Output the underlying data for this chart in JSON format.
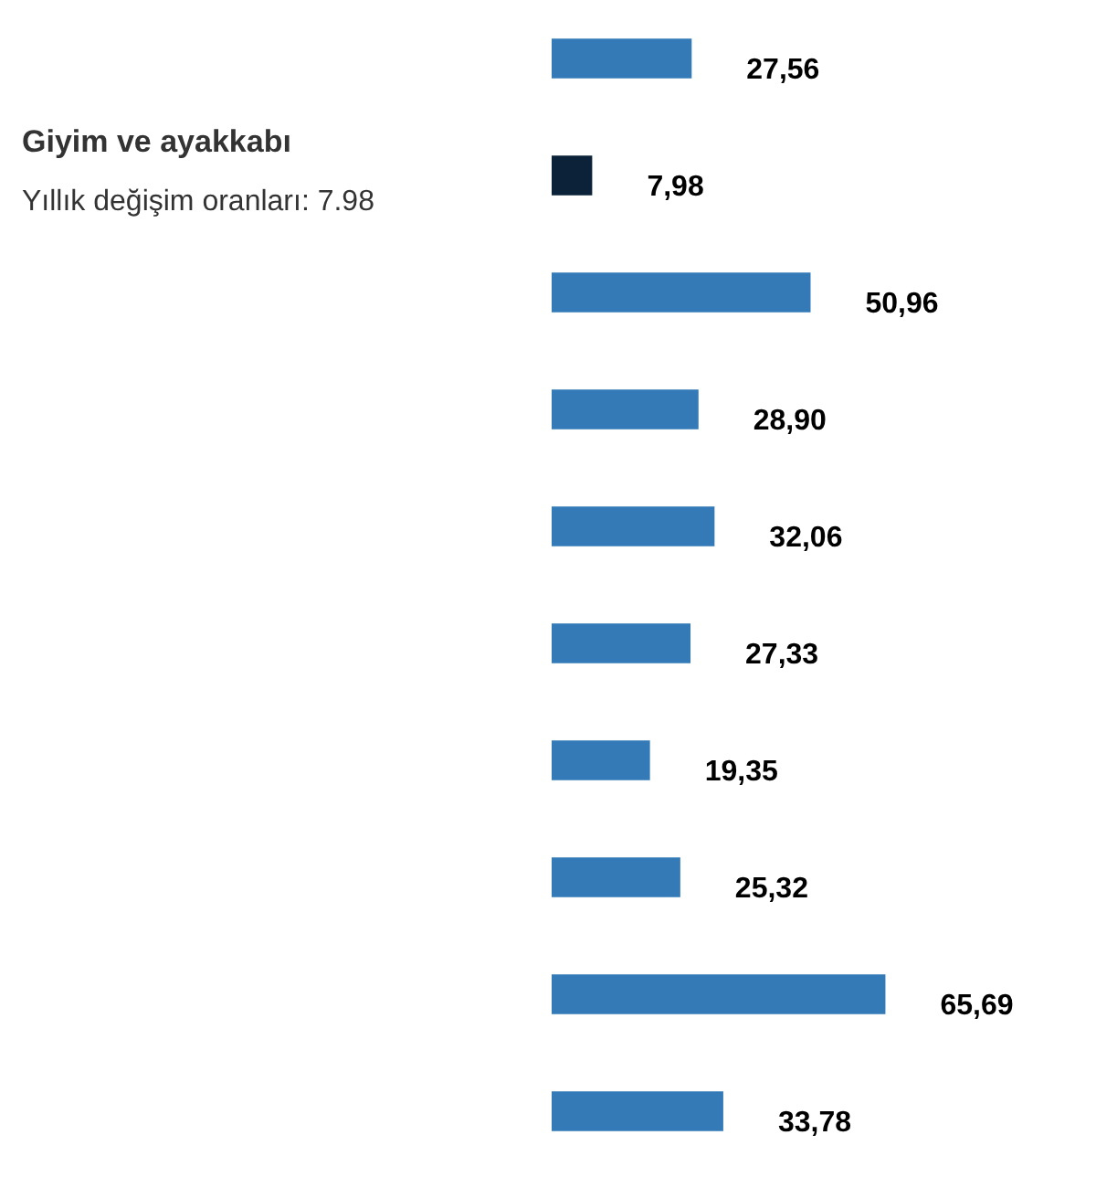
{
  "chart_data": {
    "type": "bar",
    "orientation": "horizontal",
    "categories": [
      null,
      null,
      null,
      null,
      null,
      null,
      null,
      null,
      null,
      null
    ],
    "values": [
      27.56,
      7.98,
      50.96,
      28.9,
      32.06,
      27.33,
      19.35,
      25.32,
      65.69,
      33.78
    ],
    "colors": [
      "#337ab7",
      "#0b2238",
      "#337ab7",
      "#337ab7",
      "#337ab7",
      "#337ab7",
      "#337ab7",
      "#337ab7",
      "#337ab7",
      "#337ab7"
    ],
    "value_labels": [
      "27,56",
      "7,98",
      "50,96",
      "28,90",
      "32,06",
      "27,33",
      "19,35",
      "25,32",
      "65,69",
      "33,78"
    ],
    "annotations": [
      "Giyim ve ayakkabı",
      "Yıllık değişim oranları: 7.98"
    ]
  }
}
